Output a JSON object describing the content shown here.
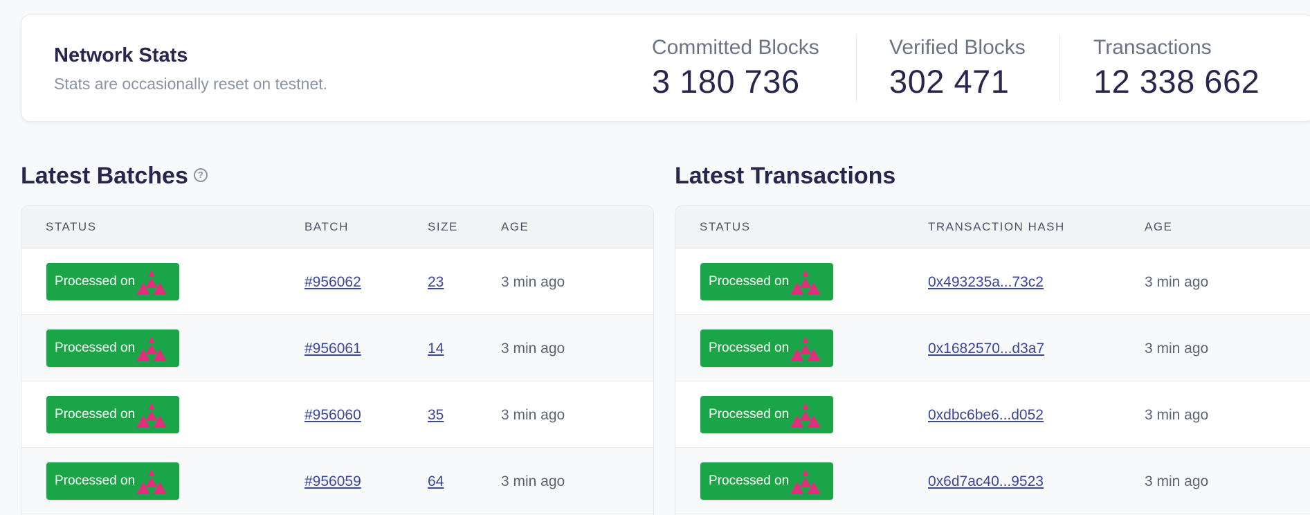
{
  "stats": {
    "title": "Network Stats",
    "subtitle": "Stats are occasionally reset on testnet.",
    "items": [
      {
        "label": "Committed Blocks",
        "value": "3 180 736"
      },
      {
        "label": "Verified Blocks",
        "value": "302 471"
      },
      {
        "label": "Transactions",
        "value": "12 338 662"
      }
    ]
  },
  "batches": {
    "title": "Latest Batches",
    "help_icon": "question-circle-icon",
    "columns": [
      "STATUS",
      "BATCH",
      "SIZE",
      "AGE"
    ],
    "rows": [
      {
        "status": "Processed on",
        "batch": "#956062",
        "size": "23",
        "age": "3 min ago"
      },
      {
        "status": "Processed on",
        "batch": "#956061",
        "size": "14",
        "age": "3 min ago"
      },
      {
        "status": "Processed on",
        "batch": "#956060",
        "size": "35",
        "age": "3 min ago"
      },
      {
        "status": "Processed on",
        "batch": "#956059",
        "size": "64",
        "age": "3 min ago"
      }
    ]
  },
  "transactions": {
    "title": "Latest Transactions",
    "columns": [
      "STATUS",
      "TRANSACTION HASH",
      "AGE"
    ],
    "rows": [
      {
        "status": "Processed on",
        "hash": "0x493235a...73c2",
        "age": "3 min ago"
      },
      {
        "status": "Processed on",
        "hash": "0x1682570...d3a7",
        "age": "3 min ago"
      },
      {
        "status": "Processed on",
        "hash": "0xdbc6be6...d052",
        "age": "3 min ago"
      },
      {
        "status": "Processed on",
        "hash": "0x6d7ac40...9523",
        "age": "3 min ago"
      }
    ]
  },
  "colors": {
    "status_green": "#1aa648",
    "network_logo": "#e0307c",
    "link": "#3a4699"
  }
}
